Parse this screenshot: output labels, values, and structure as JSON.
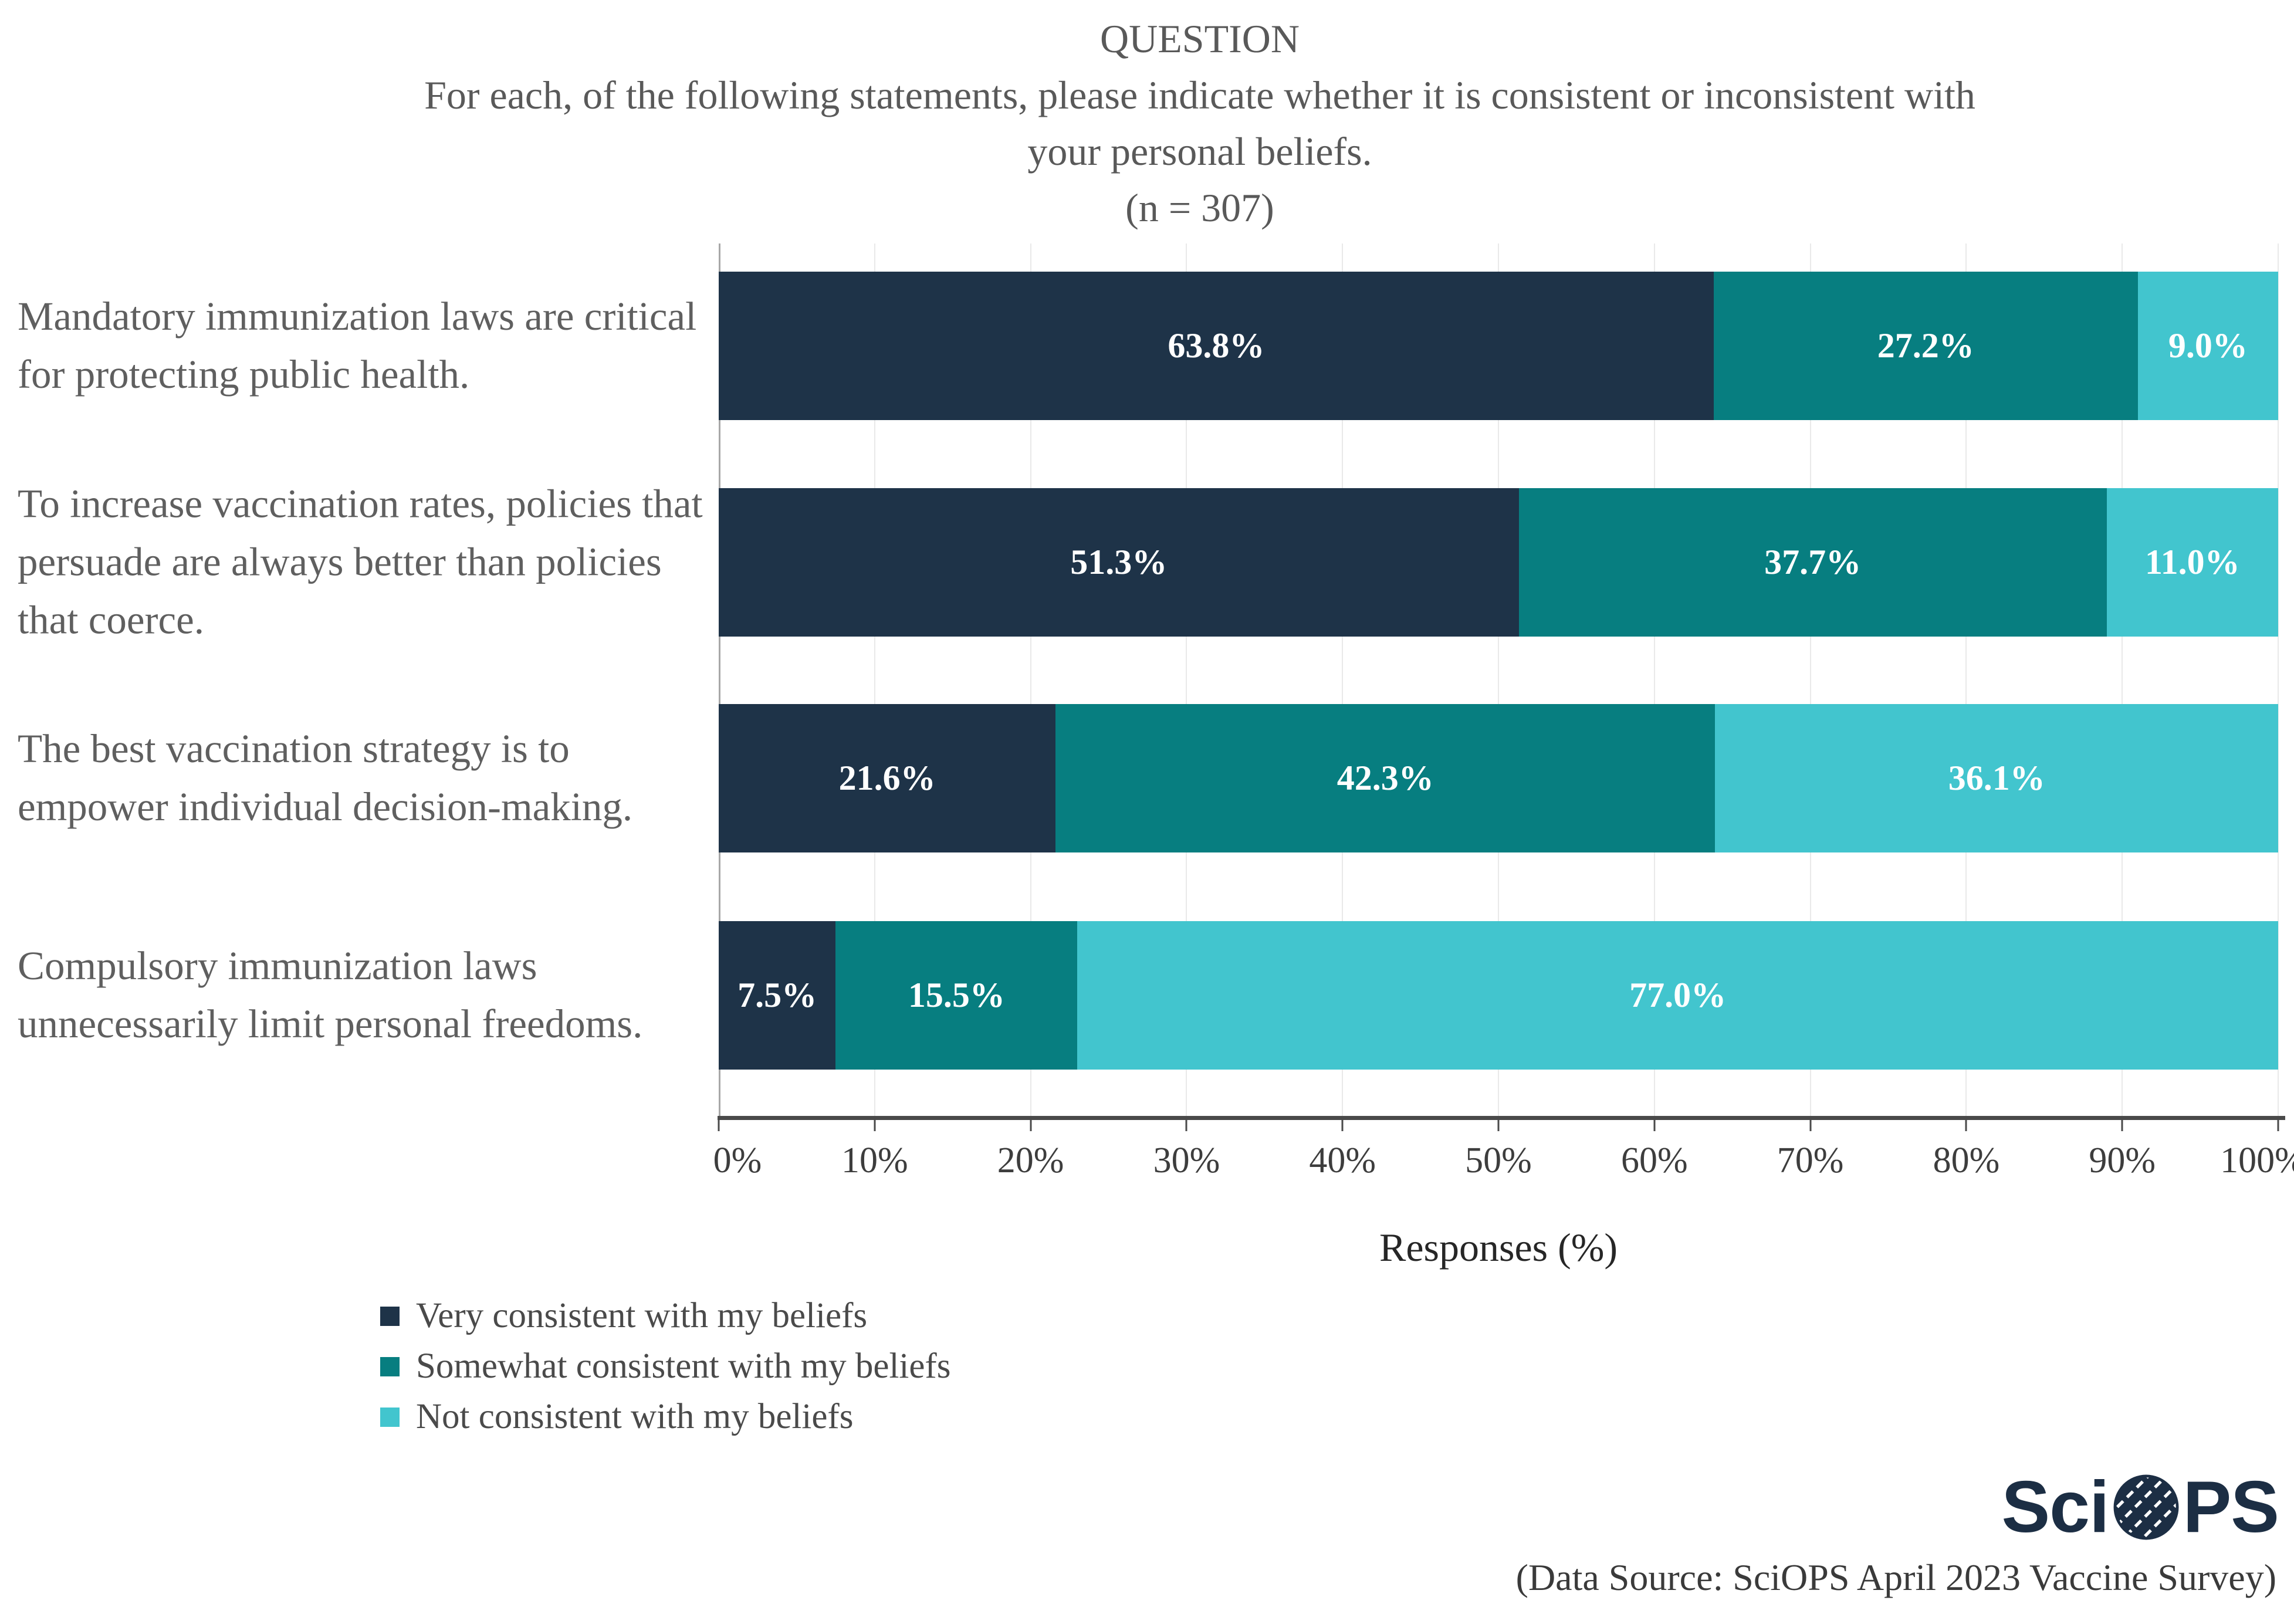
{
  "title": {
    "kicker": "QUESTION",
    "question_line1": "For each, of the following statements, please indicate whether it is consistent or inconsistent with",
    "question_line2": "your personal beliefs.",
    "sample_size": "(n = 307)"
  },
  "chart_data": {
    "type": "bar",
    "variant": "horizontal-stacked-100",
    "title": "QUESTION: For each, of the following statements, please indicate whether it is consistent or inconsistent with your personal beliefs. (n = 307)",
    "n": 307,
    "categories": [
      "Mandatory immunization laws are critical for protecting public health.",
      "To increase vaccination rates, policies that persuade are always better than policies that coerce.",
      "The best vaccination strategy is to empower individual decision-making.",
      "Compulsory immunization laws unnecessarily limit personal freedoms."
    ],
    "series": [
      {
        "name": "Very consistent with my beliefs",
        "color": "#1e3348",
        "values": [
          63.8,
          51.3,
          21.6,
          7.5
        ],
        "labels": [
          "63.8%",
          "51.3%",
          "21.6%",
          "7.5%"
        ]
      },
      {
        "name": "Somewhat consistent with my beliefs",
        "color": "#077e80",
        "values": [
          27.2,
          37.7,
          42.3,
          15.5
        ],
        "labels": [
          "27.2%",
          "37.7%",
          "42.3%",
          "15.5%"
        ]
      },
      {
        "name": "Not consistent with my beliefs",
        "color": "#42c5ce",
        "values": [
          9.0,
          11.0,
          36.1,
          77.0
        ],
        "labels": [
          "9.0%",
          "11.0%",
          "36.1%",
          "77.0%"
        ]
      }
    ],
    "xlabel": "Responses (%)",
    "x_ticks": [
      "0%",
      "10%",
      "20%",
      "30%",
      "40%",
      "50%",
      "60%",
      "70%",
      "80%",
      "90%",
      "100%"
    ],
    "xlim": [
      0,
      100
    ],
    "grid": true,
    "legend_position": "bottom-left"
  },
  "legend": {
    "items": [
      {
        "label": "Very consistent with my beliefs",
        "color": "#1e3348"
      },
      {
        "label": "Somewhat consistent with my beliefs",
        "color": "#077e80"
      },
      {
        "label": "Not consistent with my beliefs",
        "color": "#42c5ce"
      }
    ]
  },
  "footer": {
    "logo_prefix": "Sci",
    "logo_suffix": "PS",
    "source": "(Data Source: SciOPS April 2023 Vaccine Survey)"
  },
  "colors": {
    "very_consistent": "#1e3348",
    "somewhat_consistent": "#077e80",
    "not_consistent": "#42c5ce",
    "axis": "#4a4a4a",
    "gridline": "#e9e9e9",
    "title_text": "#595959",
    "category_text": "#5f5f5f",
    "tick_text": "#3d3d3d",
    "logo_navy": "#1c2e44"
  }
}
